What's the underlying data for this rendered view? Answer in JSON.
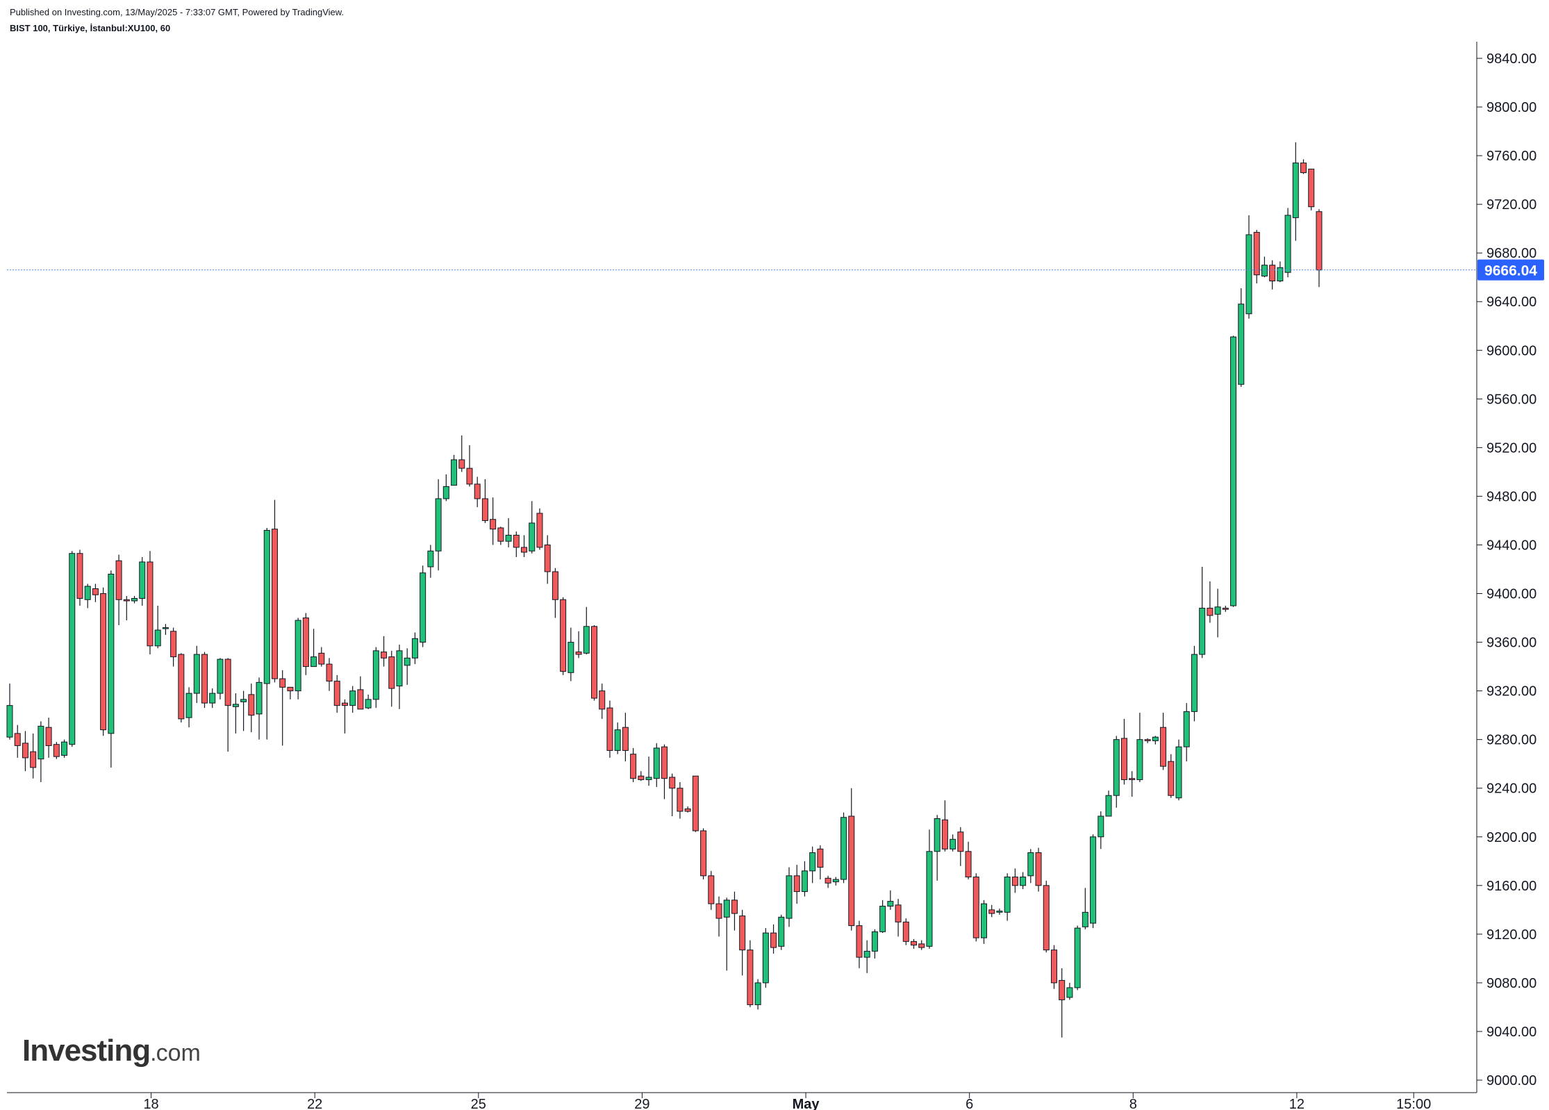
{
  "header": {
    "published": "Published on Investing.com, 13/May/2025 - 7:33:07 GMT, Powered by TradingView.",
    "symbol": "BIST 100, Türkiye, İstanbul:XU100, 60"
  },
  "watermark": {
    "brand": "Investing",
    "dot": ".",
    "domain": "com"
  },
  "colors": {
    "up": "#22c17a",
    "down": "#f05a5a",
    "wick": "#131722",
    "price_line": "#5b8cf0",
    "price_label_bg": "#2962ff",
    "axis": "#131722"
  },
  "chart_data": {
    "type": "candlestick",
    "title": "BIST 100, Türkiye, İstanbul:XU100, 60",
    "ylim": [
      8988,
      9868
    ],
    "y_ticks": [
      "9000.00",
      "9040.00",
      "9080.00",
      "9120.00",
      "9160.00",
      "9200.00",
      "9240.00",
      "9280.00",
      "9320.00",
      "9360.00",
      "9400.00",
      "9440.00",
      "9480.00",
      "9520.00",
      "9560.00",
      "9600.00",
      "9640.00",
      "9680.00",
      "9720.00",
      "9760.00",
      "9800.00",
      "9840.00"
    ],
    "x_ticks": [
      {
        "label": "18",
        "index": 18.5,
        "bold": false
      },
      {
        "label": "22",
        "index": 39.5,
        "bold": false
      },
      {
        "label": "25",
        "index": 60.5,
        "bold": false
      },
      {
        "label": "29",
        "index": 81.5,
        "bold": false
      },
      {
        "label": "May",
        "index": 102.5,
        "bold": true
      },
      {
        "label": "6",
        "index": 123.5,
        "bold": false
      },
      {
        "label": "8",
        "index": 144.5,
        "bold": false
      },
      {
        "label": "12",
        "index": 165.5,
        "bold": false
      },
      {
        "label": "15:00",
        "index": 180.5,
        "bold": false
      }
    ],
    "last_price": 9666.04,
    "last_price_label": "9666.04",
    "candles": [
      [
        9282,
        9308,
        9326,
        9280
      ],
      [
        9285,
        9275,
        9292,
        9265
      ],
      [
        9277,
        9265,
        9287,
        9254
      ],
      [
        9270,
        9257,
        9285,
        9248
      ],
      [
        9264,
        9291,
        9295,
        9245
      ],
      [
        9290,
        9275,
        9298,
        9265
      ],
      [
        9276,
        9266,
        9278,
        9264
      ],
      [
        9267,
        9278,
        9280,
        9265
      ],
      [
        9276,
        9433,
        9435,
        9274
      ],
      [
        9433,
        9396,
        9436,
        9390
      ],
      [
        9395,
        9406,
        9408,
        9388
      ],
      [
        9404,
        9399,
        9408,
        9393
      ],
      [
        9400,
        9288,
        9405,
        9283
      ],
      [
        9285,
        9416,
        9419,
        9257
      ],
      [
        9427,
        9395,
        9432,
        9374
      ],
      [
        9395,
        9394,
        9398,
        9378
      ],
      [
        9394,
        9396,
        9398,
        9392
      ],
      [
        9396,
        9426,
        9430,
        9390
      ],
      [
        9426,
        9357,
        9435,
        9350
      ],
      [
        9357,
        9370,
        9390,
        9355
      ],
      [
        9372,
        9372,
        9375,
        9366
      ],
      [
        9369,
        9348,
        9372,
        9340
      ],
      [
        9350,
        9297,
        9351,
        9294
      ],
      [
        9298,
        9318,
        9323,
        9290
      ],
      [
        9318,
        9350,
        9357,
        9310
      ],
      [
        9350,
        9310,
        9352,
        9306
      ],
      [
        9310,
        9318,
        9322,
        9306
      ],
      [
        9318,
        9346,
        9347,
        9313
      ],
      [
        9346,
        9308,
        9347,
        9270
      ],
      [
        9307,
        9309,
        9318,
        9285
      ],
      [
        9311,
        9313,
        9320,
        9287
      ],
      [
        9317,
        9300,
        9326,
        9286
      ],
      [
        9301,
        9327,
        9331,
        9280
      ],
      [
        9326,
        9452,
        9454,
        9280
      ],
      [
        9453,
        9330,
        9477,
        9327
      ],
      [
        9330,
        9323,
        9337,
        9275
      ],
      [
        9323,
        9320,
        9323,
        9313
      ],
      [
        9320,
        9378,
        9380,
        9313
      ],
      [
        9380,
        9340,
        9384,
        9333
      ],
      [
        9340,
        9348,
        9371,
        9340
      ],
      [
        9351,
        9342,
        9356,
        9340
      ],
      [
        9342,
        9328,
        9347,
        9320
      ],
      [
        9328,
        9308,
        9333,
        9302
      ],
      [
        9310,
        9308,
        9313,
        9285
      ],
      [
        9308,
        9320,
        9324,
        9302
      ],
      [
        9321,
        9305,
        9332,
        9305
      ],
      [
        9306,
        9313,
        9317,
        9305
      ],
      [
        9313,
        9353,
        9356,
        9306
      ],
      [
        9352,
        9347,
        9365,
        9340
      ],
      [
        9348,
        9322,
        9353,
        9307
      ],
      [
        9324,
        9353,
        9358,
        9305
      ],
      [
        9341,
        9347,
        9355,
        9325
      ],
      [
        9347,
        9363,
        9368,
        9342
      ],
      [
        9360,
        9417,
        9423,
        9356
      ],
      [
        9422,
        9435,
        9440,
        9413
      ],
      [
        9435,
        9478,
        9494,
        9419
      ],
      [
        9478,
        9488,
        9498,
        9476
      ],
      [
        9489,
        9510,
        9514,
        9498
      ],
      [
        9510,
        9503,
        9530,
        9500
      ],
      [
        9503,
        9490,
        9522,
        9488
      ],
      [
        9490,
        9478,
        9496,
        9471
      ],
      [
        9478,
        9460,
        9494,
        9458
      ],
      [
        9461,
        9453,
        9479,
        9440
      ],
      [
        9454,
        9443,
        9455,
        9440
      ],
      [
        9443,
        9448,
        9462,
        9438
      ],
      [
        9448,
        9438,
        9451,
        9430
      ],
      [
        9438,
        9434,
        9448,
        9430
      ],
      [
        9435,
        9458,
        9476,
        9433
      ],
      [
        9466,
        9438,
        9470,
        9436
      ],
      [
        9440,
        9418,
        9448,
        9408
      ],
      [
        9418,
        9395,
        9421,
        9380
      ],
      [
        9395,
        9336,
        9397,
        9333
      ],
      [
        9335,
        9360,
        9372,
        9328
      ],
      [
        9352,
        9350,
        9369,
        9347
      ],
      [
        9351,
        9373,
        9389,
        9350
      ],
      [
        9373,
        9314,
        9374,
        9312
      ],
      [
        9320,
        9305,
        9326,
        9297
      ],
      [
        9306,
        9271,
        9312,
        9265
      ],
      [
        9271,
        9288,
        9294,
        9268
      ],
      [
        9290,
        9271,
        9302,
        9262
      ],
      [
        9268,
        9248,
        9273,
        9245
      ],
      [
        9250,
        9247,
        9254,
        9246
      ],
      [
        9247,
        9249,
        9266,
        9242
      ],
      [
        9248,
        9273,
        9277,
        9241
      ],
      [
        9274,
        9248,
        9276,
        9231
      ],
      [
        9249,
        9240,
        9252,
        9217
      ],
      [
        9240,
        9221,
        9245,
        9215
      ],
      [
        9223,
        9221,
        9225,
        9220
      ],
      [
        9250,
        9205,
        9250,
        9204
      ],
      [
        9205,
        9168,
        9207,
        9165
      ],
      [
        9168,
        9145,
        9172,
        9140
      ],
      [
        9145,
        9133,
        9151,
        9118
      ],
      [
        9134,
        9148,
        9150,
        9090
      ],
      [
        9148,
        9137,
        9155,
        9123
      ],
      [
        9135,
        9107,
        9140,
        9086
      ],
      [
        9107,
        9062,
        9115,
        9060
      ],
      [
        9062,
        9080,
        9083,
        9058
      ],
      [
        9080,
        9121,
        9125,
        9076
      ],
      [
        9121,
        9109,
        9128,
        9104
      ],
      [
        9110,
        9134,
        9136,
        9107
      ],
      [
        9133,
        9168,
        9175,
        9126
      ],
      [
        9168,
        9155,
        9177,
        9145
      ],
      [
        9155,
        9172,
        9180,
        9151
      ],
      [
        9172,
        9187,
        9192,
        9162
      ],
      [
        9190,
        9175,
        9193,
        9165
      ],
      [
        9166,
        9162,
        9168,
        9158
      ],
      [
        9163,
        9165,
        9167,
        9160
      ],
      [
        9165,
        9216,
        9220,
        9162
      ],
      [
        9217,
        9127,
        9240,
        9123
      ],
      [
        9127,
        9101,
        9131,
        9092
      ],
      [
        9101,
        9106,
        9115,
        9088
      ],
      [
        9106,
        9122,
        9124,
        9100
      ],
      [
        9122,
        9143,
        9148,
        9121
      ],
      [
        9143,
        9147,
        9156,
        9140
      ],
      [
        9144,
        9130,
        9149,
        9118
      ],
      [
        9130,
        9114,
        9133,
        9111
      ],
      [
        9114,
        9111,
        9116,
        9108
      ],
      [
        9112,
        9109,
        9115,
        9107
      ],
      [
        9110,
        9188,
        9206,
        9108
      ],
      [
        9188,
        9215,
        9218,
        9164
      ],
      [
        9214,
        9190,
        9230,
        9188
      ],
      [
        9190,
        9198,
        9202,
        9188
      ],
      [
        9204,
        9188,
        9208,
        9176
      ],
      [
        9188,
        9167,
        9196,
        9165
      ],
      [
        9167,
        9117,
        9170,
        9114
      ],
      [
        9117,
        9145,
        9148,
        9112
      ],
      [
        9140,
        9137,
        9144,
        9134
      ],
      [
        9138,
        9139,
        9141,
        9136
      ],
      [
        9138,
        9167,
        9170,
        9131
      ],
      [
        9167,
        9160,
        9174,
        9154
      ],
      [
        9160,
        9167,
        9171,
        9157
      ],
      [
        9168,
        9187,
        9190,
        9162
      ],
      [
        9187,
        9160,
        9191,
        9155
      ],
      [
        9160,
        9107,
        9164,
        9105
      ],
      [
        9107,
        9080,
        9111,
        9075
      ],
      [
        9082,
        9066,
        9092,
        9035
      ],
      [
        9068,
        9076,
        9080,
        9066
      ],
      [
        9076,
        9125,
        9127,
        9074
      ],
      [
        9126,
        9138,
        9158,
        9124
      ],
      [
        9129,
        9200,
        9202,
        9125
      ],
      [
        9200,
        9217,
        9221,
        9190
      ],
      [
        9217,
        9234,
        9238,
        9220
      ],
      [
        9234,
        9280,
        9283,
        9224
      ],
      [
        9281,
        9247,
        9297,
        9243
      ],
      [
        9248,
        9247,
        9254,
        9233
      ],
      [
        9247,
        9280,
        9302,
        9245
      ],
      [
        9280,
        9279,
        9281,
        9277
      ],
      [
        9279,
        9282,
        9283,
        9276
      ],
      [
        9290,
        9258,
        9302,
        9255
      ],
      [
        9262,
        9234,
        9268,
        9232
      ],
      [
        9232,
        9274,
        9280,
        9230
      ],
      [
        9274,
        9303,
        9310,
        9262
      ],
      [
        9303,
        9350,
        9357,
        9295
      ],
      [
        9350,
        9388,
        9422,
        9347
      ],
      [
        9388,
        9382,
        9410,
        9376
      ],
      [
        9383,
        9389,
        9404,
        9364
      ],
      [
        9388,
        9387,
        9390,
        9385
      ],
      [
        9390,
        9611,
        9612,
        9389
      ],
      [
        9572,
        9638,
        9651,
        9570
      ],
      [
        9630,
        9695,
        9711,
        9626
      ],
      [
        9697,
        9662,
        9699,
        9655
      ],
      [
        9661,
        9670,
        9677,
        9660
      ],
      [
        9670,
        9657,
        9674,
        9650
      ],
      [
        9657,
        9668,
        9673,
        9656
      ],
      [
        9664,
        9711,
        9717,
        9660
      ],
      [
        9709,
        9754,
        9771,
        9690
      ],
      [
        9754,
        9746,
        9757,
        9745
      ],
      [
        9749,
        9718,
        9749,
        9715
      ],
      [
        9714,
        9666,
        9716,
        9652
      ]
    ]
  }
}
